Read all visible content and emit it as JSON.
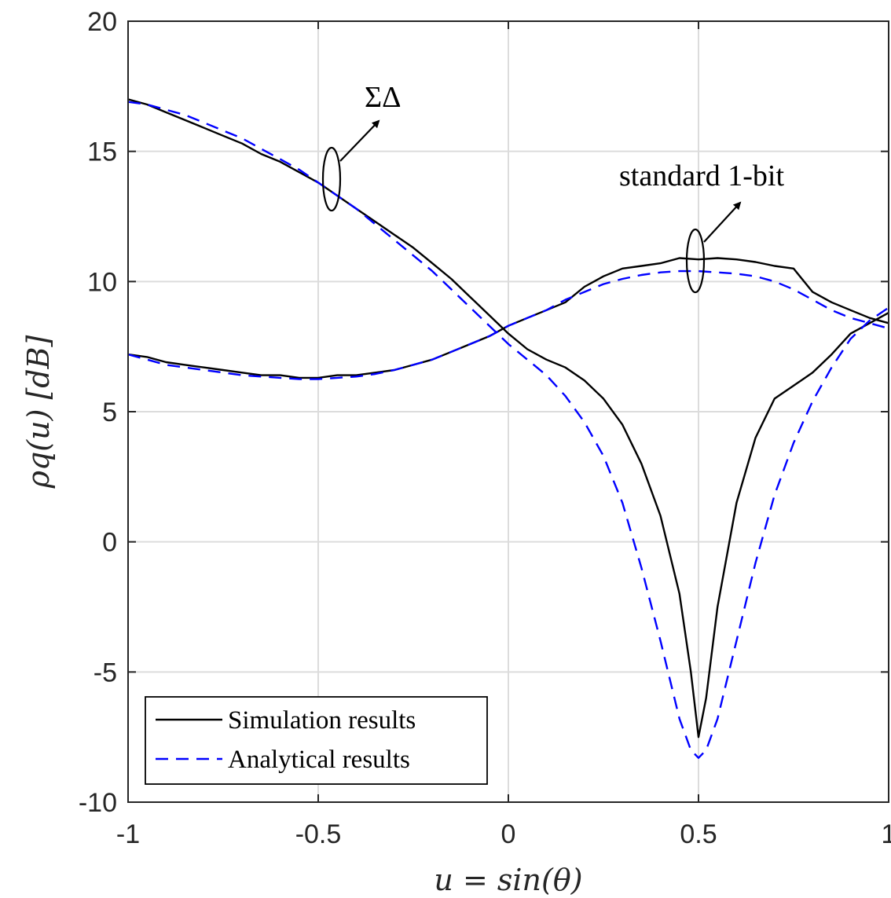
{
  "chart_data": {
    "type": "line",
    "xlabel": "u = sin(θ)",
    "ylabel": "ρq(u) [dB]",
    "xlim": [
      -1,
      1
    ],
    "ylim": [
      -10,
      20
    ],
    "xticks": [
      -1,
      -0.5,
      0,
      0.5,
      1
    ],
    "xtick_labels": [
      "-1",
      "-0.5",
      "0",
      "0.5",
      "1"
    ],
    "yticks": [
      -10,
      -5,
      0,
      5,
      10,
      15,
      20
    ],
    "ytick_labels": [
      "-10",
      "-5",
      "0",
      "5",
      "10",
      "15",
      "20"
    ],
    "grid": true,
    "legend_position": "bottom-left",
    "legend": [
      {
        "label": "Simulation results",
        "color": "#000000",
        "style": "solid"
      },
      {
        "label": "Analytical results",
        "color": "#0000ff",
        "style": "dashed"
      }
    ],
    "annotations": [
      {
        "text": "ΣΔ",
        "target": [
          -0.47,
          14.0
        ]
      },
      {
        "text": "standard 1-bit",
        "target": [
          0.5,
          10.8
        ]
      }
    ],
    "series": [
      {
        "group": "ΣΔ",
        "kind": "Simulation results",
        "color": "#000000",
        "style": "solid",
        "x": [
          -1.0,
          -0.95,
          -0.9,
          -0.85,
          -0.8,
          -0.75,
          -0.7,
          -0.65,
          -0.6,
          -0.55,
          -0.5,
          -0.45,
          -0.4,
          -0.35,
          -0.3,
          -0.25,
          -0.2,
          -0.15,
          -0.1,
          -0.05,
          0.0,
          0.05,
          0.1,
          0.15,
          0.2,
          0.25,
          0.3,
          0.35,
          0.4,
          0.45,
          0.48,
          0.5,
          0.52,
          0.55,
          0.6,
          0.65,
          0.7,
          0.75,
          0.8,
          0.85,
          0.9,
          0.95,
          1.0
        ],
        "y": [
          17.0,
          16.8,
          16.5,
          16.2,
          15.9,
          15.6,
          15.3,
          14.9,
          14.6,
          14.2,
          13.8,
          13.3,
          12.8,
          12.3,
          11.8,
          11.3,
          10.7,
          10.1,
          9.4,
          8.7,
          8.0,
          7.4,
          7.0,
          6.7,
          6.2,
          5.5,
          4.5,
          3.0,
          1.0,
          -2.0,
          -5.0,
          -7.5,
          -6.0,
          -2.5,
          1.5,
          4.0,
          5.5,
          6.0,
          6.5,
          7.2,
          8.0,
          8.4,
          8.8
        ]
      },
      {
        "group": "ΣΔ",
        "kind": "Analytical results",
        "color": "#0000ff",
        "style": "dashed",
        "x": [
          -1.0,
          -0.95,
          -0.9,
          -0.85,
          -0.8,
          -0.75,
          -0.7,
          -0.65,
          -0.6,
          -0.55,
          -0.5,
          -0.45,
          -0.4,
          -0.35,
          -0.3,
          -0.25,
          -0.2,
          -0.15,
          -0.1,
          -0.05,
          0.0,
          0.05,
          0.1,
          0.15,
          0.2,
          0.25,
          0.3,
          0.35,
          0.4,
          0.45,
          0.48,
          0.5,
          0.52,
          0.55,
          0.6,
          0.65,
          0.7,
          0.75,
          0.8,
          0.85,
          0.9,
          0.95,
          1.0
        ],
        "y": [
          16.9,
          16.8,
          16.6,
          16.4,
          16.1,
          15.8,
          15.5,
          15.1,
          14.7,
          14.3,
          13.8,
          13.3,
          12.8,
          12.2,
          11.6,
          11.0,
          10.4,
          9.7,
          9.0,
          8.3,
          7.6,
          7.0,
          6.4,
          5.6,
          4.6,
          3.3,
          1.5,
          -1.0,
          -3.8,
          -6.8,
          -8.0,
          -8.3,
          -8.0,
          -6.8,
          -3.8,
          -0.8,
          1.8,
          3.8,
          5.4,
          6.7,
          7.8,
          8.5,
          9.0
        ]
      },
      {
        "group": "standard 1-bit",
        "kind": "Simulation results",
        "color": "#000000",
        "style": "solid",
        "x": [
          -1.0,
          -0.95,
          -0.9,
          -0.85,
          -0.8,
          -0.75,
          -0.7,
          -0.65,
          -0.6,
          -0.55,
          -0.5,
          -0.45,
          -0.4,
          -0.35,
          -0.3,
          -0.25,
          -0.2,
          -0.15,
          -0.1,
          -0.05,
          0.0,
          0.05,
          0.1,
          0.15,
          0.2,
          0.25,
          0.3,
          0.35,
          0.4,
          0.45,
          0.5,
          0.55,
          0.6,
          0.65,
          0.7,
          0.75,
          0.8,
          0.85,
          0.9,
          0.95,
          1.0
        ],
        "y": [
          7.2,
          7.1,
          6.9,
          6.8,
          6.7,
          6.6,
          6.5,
          6.4,
          6.4,
          6.3,
          6.3,
          6.4,
          6.4,
          6.5,
          6.6,
          6.8,
          7.0,
          7.3,
          7.6,
          7.9,
          8.3,
          8.6,
          8.9,
          9.2,
          9.8,
          10.2,
          10.5,
          10.6,
          10.7,
          10.9,
          10.85,
          10.9,
          10.85,
          10.75,
          10.6,
          10.5,
          9.6,
          9.2,
          8.9,
          8.6,
          8.4
        ]
      },
      {
        "group": "standard 1-bit",
        "kind": "Analytical results",
        "color": "#0000ff",
        "style": "dashed",
        "x": [
          -1.0,
          -0.95,
          -0.9,
          -0.85,
          -0.8,
          -0.75,
          -0.7,
          -0.65,
          -0.6,
          -0.55,
          -0.5,
          -0.45,
          -0.4,
          -0.35,
          -0.3,
          -0.25,
          -0.2,
          -0.15,
          -0.1,
          -0.05,
          0.0,
          0.05,
          0.1,
          0.15,
          0.2,
          0.25,
          0.3,
          0.35,
          0.4,
          0.45,
          0.5,
          0.55,
          0.6,
          0.65,
          0.7,
          0.75,
          0.8,
          0.85,
          0.9,
          0.95,
          1.0
        ],
        "y": [
          7.2,
          7.0,
          6.8,
          6.7,
          6.6,
          6.5,
          6.4,
          6.35,
          6.3,
          6.25,
          6.25,
          6.3,
          6.35,
          6.45,
          6.6,
          6.8,
          7.0,
          7.3,
          7.6,
          7.9,
          8.3,
          8.6,
          8.9,
          9.3,
          9.6,
          9.9,
          10.1,
          10.25,
          10.35,
          10.4,
          10.4,
          10.35,
          10.3,
          10.2,
          10.0,
          9.7,
          9.3,
          8.9,
          8.6,
          8.4,
          8.2
        ]
      }
    ]
  }
}
